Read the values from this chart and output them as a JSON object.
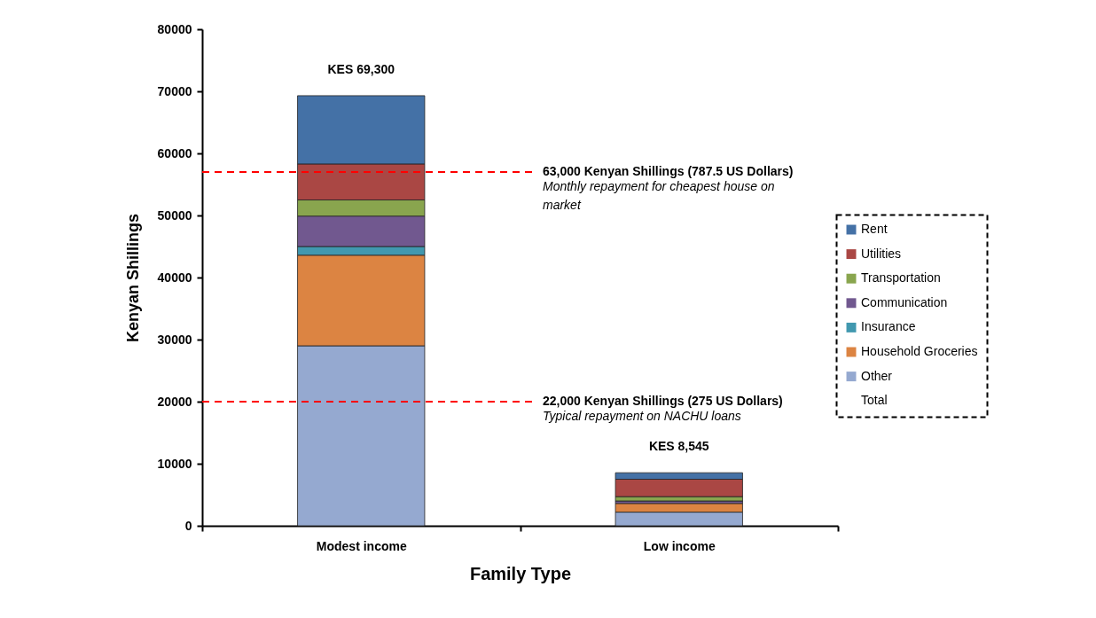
{
  "chart_data": {
    "type": "bar",
    "stacked": true,
    "xlabel": "Family Type",
    "ylabel": "Kenyan Shillings",
    "categories": [
      "Modest income",
      "Low income"
    ],
    "series": [
      {
        "name": "Total",
        "values": [
          null,
          null
        ]
      },
      {
        "name": "Other",
        "color": "#95a9d0",
        "values": [
          29000,
          2200
        ]
      },
      {
        "name": "Household Groceries",
        "color": "#dc8442",
        "values": [
          14600,
          1400
        ]
      },
      {
        "name": "Insurance",
        "color": "#4198af",
        "values": [
          1400,
          null
        ]
      },
      {
        "name": "Communication",
        "color": "#71588f",
        "values": [
          4900,
          400
        ]
      },
      {
        "name": "Transportation",
        "color": "#89a54e",
        "values": [
          2600,
          700
        ]
      },
      {
        "name": "Utilities",
        "color": "#aa4744",
        "values": [
          5800,
          2800
        ]
      },
      {
        "name": "Rent",
        "color": "#4471a6",
        "values": [
          11000,
          1045
        ]
      }
    ],
    "totals": [
      "KES 69,300",
      "KES 8,545"
    ],
    "ylim": [
      0,
      80000
    ],
    "yticks": [
      0,
      10000,
      20000,
      30000,
      40000,
      50000,
      60000,
      70000,
      80000
    ],
    "grid": false,
    "legend": "right",
    "ref_lines": [
      {
        "axis": "y",
        "value": 57000,
        "label": "63,000 Kenyan Shillings (787.5 US Dollars)",
        "color": "#ff0000",
        "line_style": "dashed"
      },
      {
        "axis": "y",
        "value": 20000,
        "label": "22,000 Kenyan Shillings (275 US Dollars)",
        "color": "#ff0000",
        "line_style": "dashed"
      }
    ],
    "annotations": [
      "Monthly repayment for cheapest house on market",
      "Typical repayment on NACHU loans"
    ]
  }
}
